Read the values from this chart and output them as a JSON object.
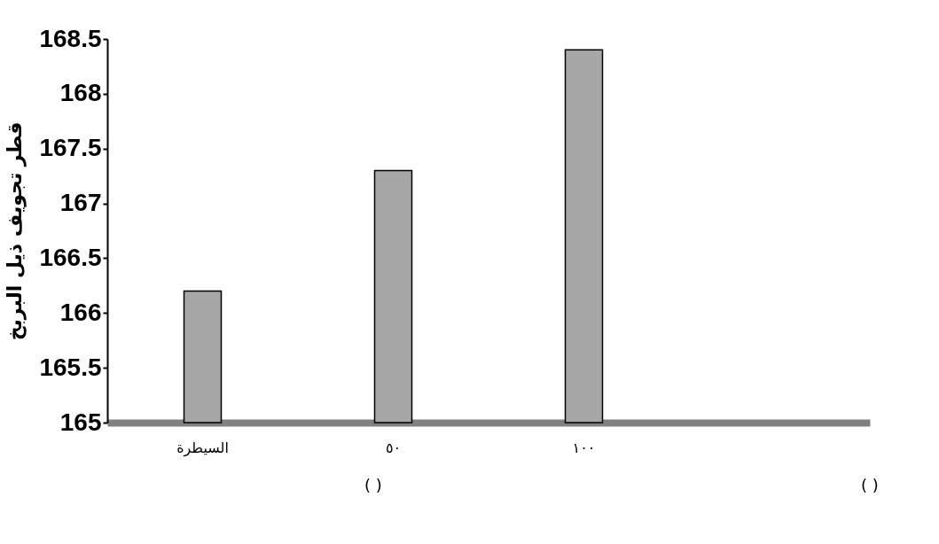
{
  "chart_data": {
    "type": "bar",
    "ylabel": "قطر تجويف ذيل البربخ",
    "categories": [
      "السيطرة",
      "٥٠",
      "١٠٠",
      null
    ],
    "values": [
      166.2,
      167.3,
      168.4,
      null
    ],
    "color": "#a6a6a6",
    "ylim": [
      165,
      168.5
    ],
    "yticks": [
      165,
      165.5,
      166,
      166.5,
      167,
      167.5,
      168,
      168.5
    ],
    "annotations": [
      "(            )",
      "( )"
    ]
  }
}
